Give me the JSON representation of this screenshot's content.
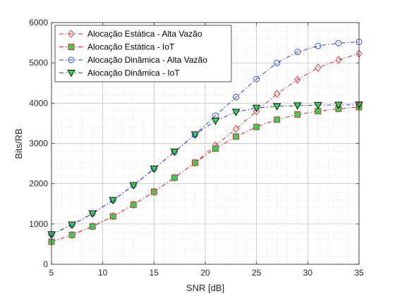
{
  "chart_data": {
    "type": "line",
    "xlabel": "SNR [dB]",
    "ylabel": "Bits/RB",
    "xlim": [
      5,
      35
    ],
    "ylim": [
      0,
      6000
    ],
    "xticks": [
      5,
      10,
      15,
      20,
      25,
      30,
      35
    ],
    "yticks": [
      0,
      1000,
      2000,
      3000,
      4000,
      5000,
      6000
    ],
    "grid": true,
    "minor_grid": true,
    "legend_position": "top-left",
    "x": [
      5,
      7,
      9,
      11,
      13,
      15,
      17,
      19,
      21,
      23,
      25,
      27,
      29,
      31,
      33,
      35
    ],
    "series": [
      {
        "name": "Alocação Estática - Alta Vazão",
        "color": "#d42a2a",
        "marker": "diamond",
        "marker_fill": "none",
        "values": [
          560,
          730,
          940,
          1190,
          1480,
          1800,
          2150,
          2520,
          2950,
          3360,
          3800,
          4230,
          4580,
          4880,
          5070,
          5230
        ]
      },
      {
        "name": "Alocação Estática - IoT",
        "color": "#d42a2a",
        "marker": "square",
        "marker_fill": "#3dcc5a",
        "values": [
          560,
          730,
          940,
          1190,
          1480,
          1800,
          2150,
          2520,
          2870,
          3170,
          3410,
          3590,
          3720,
          3800,
          3860,
          3900
        ]
      },
      {
        "name": "Alocação Dinâmica - Alta Vazão",
        "color": "#1f3fd6",
        "marker": "circle",
        "marker_fill": "none",
        "values": [
          740,
          980,
          1260,
          1590,
          1960,
          2370,
          2790,
          3220,
          3690,
          4150,
          4600,
          5000,
          5270,
          5420,
          5490,
          5520
        ]
      },
      {
        "name": "Alocação Dinâmica - IoT",
        "color": "#1f3fd6",
        "marker": "triangle-down",
        "marker_fill": "#3dcc5a",
        "values": [
          740,
          980,
          1260,
          1590,
          1960,
          2370,
          2790,
          3220,
          3560,
          3780,
          3880,
          3920,
          3940,
          3950,
          3955,
          3960
        ]
      }
    ]
  }
}
